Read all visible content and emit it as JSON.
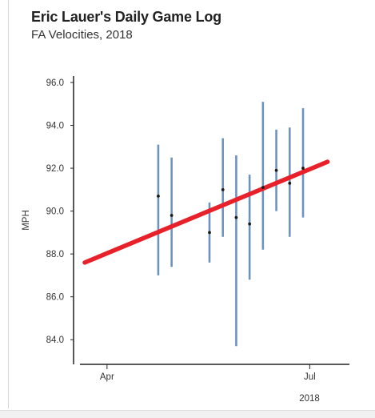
{
  "title": "Eric Lauer's Daily Game Log",
  "subtitle": "FA Velocities, 2018",
  "chart_data": {
    "type": "scatter",
    "title": "Eric Lauer's Daily Game Log",
    "subtitle": "FA Velocities, 2018",
    "ylabel": "MPH",
    "xlabel": "2018",
    "ylim": [
      83.0,
      96.0
    ],
    "y_ticks": [
      "96.0",
      "94.0",
      "92.0",
      "90.0",
      "88.0",
      "86.0",
      "84.0"
    ],
    "x_ticks": [
      "Apr",
      "Jul"
    ],
    "x_ticks_date": [
      "2018-04-01",
      "2018-07-01"
    ],
    "xlim": [
      "2018-03-22",
      "2018-07-12"
    ],
    "grid": false,
    "colors": {
      "range": "#6f93bf",
      "trend": "#e8202a",
      "point": "#1a1a1a"
    },
    "games": [
      {
        "date": "2018-04-24",
        "avg": 90.7,
        "min": 87.0,
        "max": 93.1
      },
      {
        "date": "2018-04-30",
        "avg": 89.8,
        "min": 87.4,
        "max": 92.5
      },
      {
        "date": "2018-05-17",
        "avg": 89.0,
        "min": 87.6,
        "max": 90.4
      },
      {
        "date": "2018-05-23",
        "avg": 91.0,
        "min": 88.8,
        "max": 93.4
      },
      {
        "date": "2018-05-29",
        "avg": 89.7,
        "min": 83.7,
        "max": 92.6
      },
      {
        "date": "2018-06-04",
        "avg": 89.4,
        "min": 86.8,
        "max": 91.7
      },
      {
        "date": "2018-06-10",
        "avg": 91.1,
        "min": 88.2,
        "max": 95.1
      },
      {
        "date": "2018-06-16",
        "avg": 91.9,
        "min": 90.0,
        "max": 93.8
      },
      {
        "date": "2018-06-22",
        "avg": 91.3,
        "min": 88.8,
        "max": 93.9
      },
      {
        "date": "2018-06-28",
        "avg": 92.0,
        "min": 89.7,
        "max": 94.8
      }
    ],
    "trend": [
      {
        "date": "2018-03-22",
        "y": 87.6
      },
      {
        "date": "2018-07-09",
        "y": 92.3
      }
    ]
  }
}
